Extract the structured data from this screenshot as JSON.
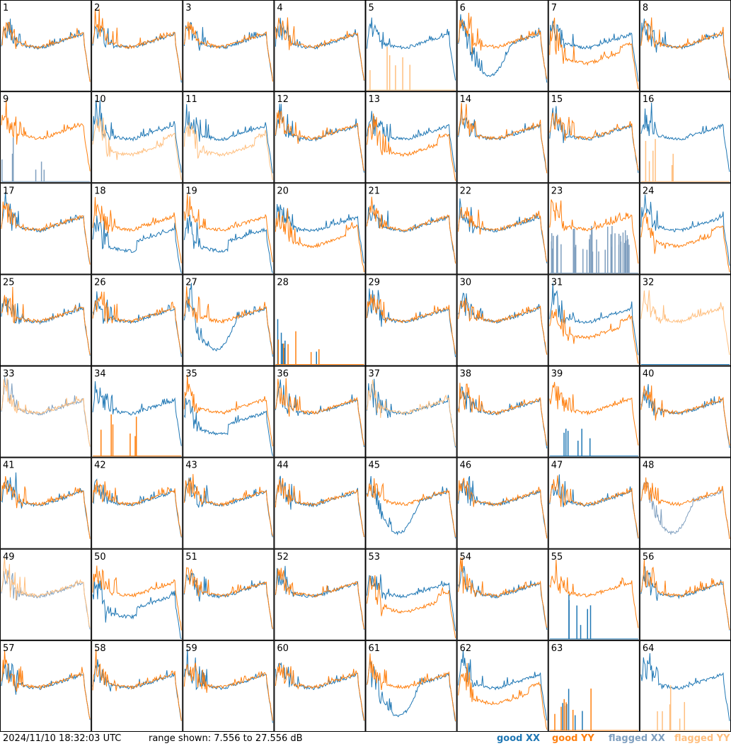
{
  "timestamp": "2024/11/10 18:32:03 UTC",
  "range_text": "range shown: 7.556 to 27.556 dB",
  "legend": {
    "good_xx": "good XX",
    "good_yy": "good YY",
    "flagged_xx": "flagged XX",
    "flagged_yy": "flagged YY"
  },
  "colors": {
    "good_xx": "#1f77b4",
    "good_yy": "#ff7f0e",
    "flagged_xx": "#7f9fbf",
    "flagged_yy": "#ffbf7f"
  },
  "chart_data": {
    "type": "line",
    "layout": "8x8 small multiples",
    "ylim_db": [
      7.556,
      27.556
    ],
    "series": [
      "XX",
      "YY"
    ],
    "panels": [
      {
        "id": "1",
        "xx": "good",
        "yy": "good",
        "kind": "normal"
      },
      {
        "id": "2",
        "xx": "good",
        "yy": "good",
        "kind": "normal"
      },
      {
        "id": "3",
        "xx": "good",
        "yy": "good",
        "kind": "normal"
      },
      {
        "id": "4",
        "xx": "good",
        "yy": "good",
        "kind": "normal"
      },
      {
        "id": "5",
        "xx": "good",
        "yy": "flagged",
        "kind": "yy-dead"
      },
      {
        "id": "6",
        "xx": "good",
        "yy": "good",
        "kind": "xx-dip"
      },
      {
        "id": "7",
        "xx": "good",
        "yy": "good",
        "kind": "yy-low"
      },
      {
        "id": "8",
        "xx": "good",
        "yy": "good",
        "kind": "normal"
      },
      {
        "id": "9",
        "xx": "flagged",
        "yy": "good",
        "kind": "xx-dead"
      },
      {
        "id": "10",
        "xx": "good",
        "yy": "flagged",
        "kind": "yy-low"
      },
      {
        "id": "11",
        "xx": "good",
        "yy": "flagged",
        "kind": "yy-low"
      },
      {
        "id": "12",
        "xx": "good",
        "yy": "good",
        "kind": "normal"
      },
      {
        "id": "13",
        "xx": "good",
        "yy": "good",
        "kind": "yy-low"
      },
      {
        "id": "14",
        "xx": "good",
        "yy": "good",
        "kind": "normal"
      },
      {
        "id": "15",
        "xx": "good",
        "yy": "good",
        "kind": "normal"
      },
      {
        "id": "16",
        "xx": "good",
        "yy": "flagged",
        "kind": "yy-dead"
      },
      {
        "id": "17",
        "xx": "good",
        "yy": "good",
        "kind": "normal"
      },
      {
        "id": "18",
        "xx": "good",
        "yy": "good",
        "kind": "xx-low"
      },
      {
        "id": "19",
        "xx": "good",
        "yy": "good",
        "kind": "xx-low"
      },
      {
        "id": "20",
        "xx": "good",
        "yy": "good",
        "kind": "yy-low"
      },
      {
        "id": "21",
        "xx": "good",
        "yy": "good",
        "kind": "normal"
      },
      {
        "id": "22",
        "xx": "good",
        "yy": "good",
        "kind": "normal"
      },
      {
        "id": "23",
        "xx": "flagged",
        "yy": "good",
        "kind": "xx-noise"
      },
      {
        "id": "24",
        "xx": "good",
        "yy": "good",
        "kind": "yy-low"
      },
      {
        "id": "25",
        "xx": "good",
        "yy": "good",
        "kind": "normal"
      },
      {
        "id": "26",
        "xx": "good",
        "yy": "good",
        "kind": "normal"
      },
      {
        "id": "27",
        "xx": "good",
        "yy": "good",
        "kind": "xx-dip"
      },
      {
        "id": "28",
        "xx": "good",
        "yy": "good",
        "kind": "both-dead"
      },
      {
        "id": "29",
        "xx": "good",
        "yy": "good",
        "kind": "normal"
      },
      {
        "id": "30",
        "xx": "good",
        "yy": "good",
        "kind": "normal"
      },
      {
        "id": "31",
        "xx": "good",
        "yy": "good",
        "kind": "yy-low"
      },
      {
        "id": "32",
        "xx": "good",
        "yy": "flagged",
        "kind": "yy-flag-only"
      },
      {
        "id": "33",
        "xx": "flagged",
        "yy": "flagged",
        "kind": "normal"
      },
      {
        "id": "34",
        "xx": "good",
        "yy": "good",
        "kind": "yy-dead"
      },
      {
        "id": "35",
        "xx": "good",
        "yy": "good",
        "kind": "xx-low"
      },
      {
        "id": "36",
        "xx": "good",
        "yy": "good",
        "kind": "normal"
      },
      {
        "id": "37",
        "xx": "good",
        "yy": "flagged",
        "kind": "normal"
      },
      {
        "id": "38",
        "xx": "good",
        "yy": "good",
        "kind": "normal"
      },
      {
        "id": "39",
        "xx": "good",
        "yy": "good",
        "kind": "xx-dead"
      },
      {
        "id": "40",
        "xx": "good",
        "yy": "good",
        "kind": "normal"
      },
      {
        "id": "41",
        "xx": "good",
        "yy": "good",
        "kind": "normal"
      },
      {
        "id": "42",
        "xx": "good",
        "yy": "good",
        "kind": "normal"
      },
      {
        "id": "43",
        "xx": "good",
        "yy": "good",
        "kind": "normal"
      },
      {
        "id": "44",
        "xx": "good",
        "yy": "good",
        "kind": "normal"
      },
      {
        "id": "45",
        "xx": "good",
        "yy": "good",
        "kind": "xx-dip"
      },
      {
        "id": "46",
        "xx": "good",
        "yy": "good",
        "kind": "normal"
      },
      {
        "id": "47",
        "xx": "good",
        "yy": "good",
        "kind": "normal"
      },
      {
        "id": "48",
        "xx": "flagged",
        "yy": "good",
        "kind": "xx-dip"
      },
      {
        "id": "49",
        "xx": "flagged",
        "yy": "flagged",
        "kind": "normal"
      },
      {
        "id": "50",
        "xx": "good",
        "yy": "good",
        "kind": "xx-low"
      },
      {
        "id": "51",
        "xx": "good",
        "yy": "good",
        "kind": "normal"
      },
      {
        "id": "52",
        "xx": "good",
        "yy": "good",
        "kind": "normal"
      },
      {
        "id": "53",
        "xx": "good",
        "yy": "good",
        "kind": "yy-low"
      },
      {
        "id": "54",
        "xx": "good",
        "yy": "good",
        "kind": "normal"
      },
      {
        "id": "55",
        "xx": "good",
        "yy": "good",
        "kind": "xx-dead"
      },
      {
        "id": "56",
        "xx": "good",
        "yy": "good",
        "kind": "normal"
      },
      {
        "id": "57",
        "xx": "good",
        "yy": "good",
        "kind": "normal"
      },
      {
        "id": "58",
        "xx": "good",
        "yy": "good",
        "kind": "normal"
      },
      {
        "id": "59",
        "xx": "good",
        "yy": "good",
        "kind": "normal"
      },
      {
        "id": "60",
        "xx": "good",
        "yy": "good",
        "kind": "normal"
      },
      {
        "id": "61",
        "xx": "good",
        "yy": "good",
        "kind": "xx-dip"
      },
      {
        "id": "62",
        "xx": "good",
        "yy": "good",
        "kind": "yy-low"
      },
      {
        "id": "63",
        "xx": "good",
        "yy": "good",
        "kind": "both-dead"
      },
      {
        "id": "64",
        "xx": "good",
        "yy": "flagged",
        "kind": "yy-dead"
      }
    ]
  }
}
